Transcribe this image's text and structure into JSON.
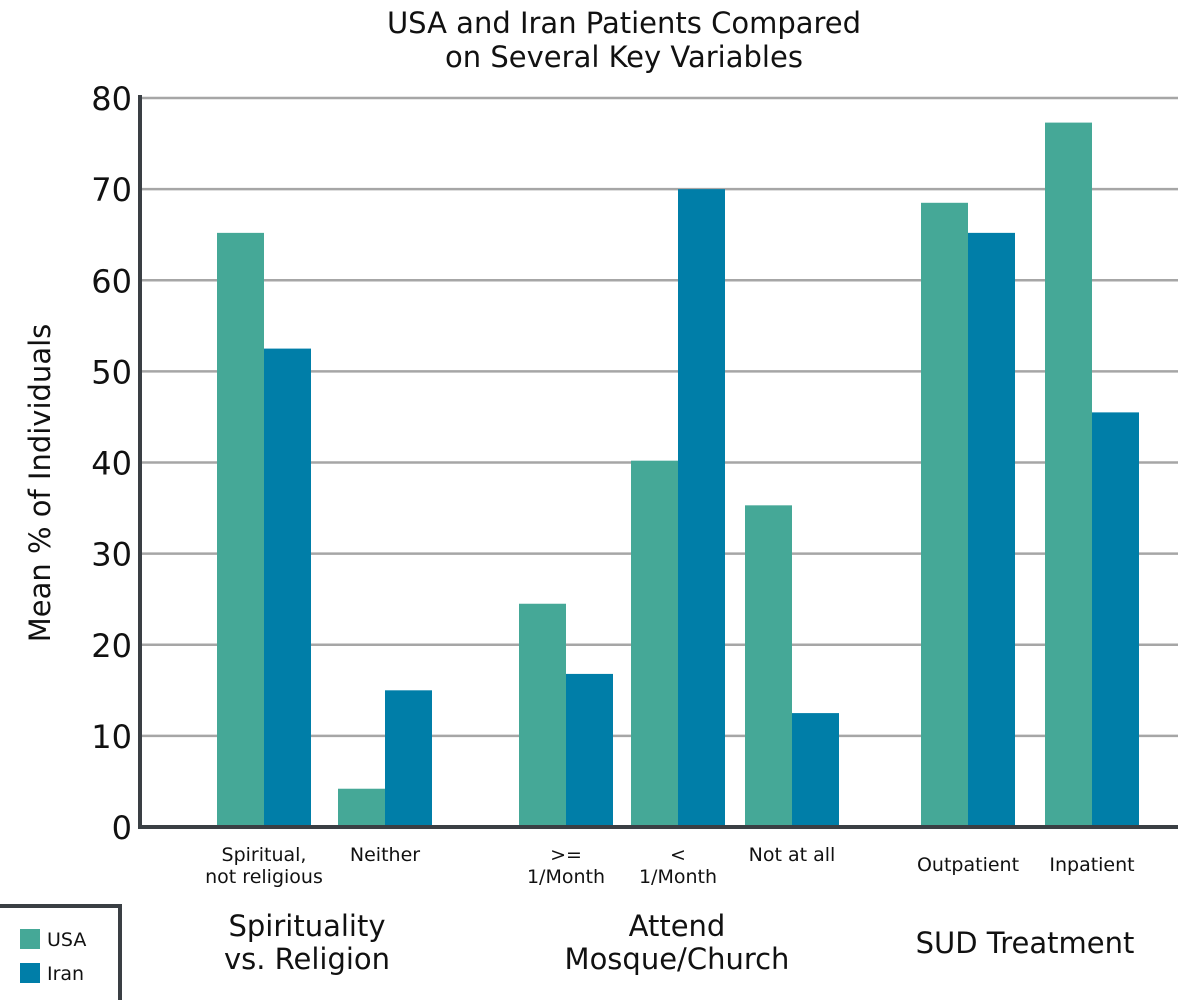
{
  "chart_data": {
    "type": "bar",
    "title": "USA and Iran Patients Compared on Several Key Variables",
    "title_lines": [
      "USA and Iran Patients Compared",
      "on Several Key Variables"
    ],
    "xlabel": "",
    "ylabel": "Mean % of Individuals",
    "ylim": [
      0,
      80
    ],
    "yticks": [
      0,
      10,
      20,
      30,
      40,
      50,
      60,
      70,
      80
    ],
    "grid": true,
    "categories": [
      [
        "Spiritual,",
        "not religious"
      ],
      [
        "Neither"
      ],
      [
        ">=",
        "1/Month"
      ],
      [
        "<",
        "1/Month"
      ],
      [
        "Not at all"
      ],
      [
        "Outpatient"
      ],
      [
        "Inpatient"
      ]
    ],
    "groups": [
      {
        "label_lines": [
          "Spirituality",
          "vs. Religion"
        ],
        "categories": [
          0,
          1
        ]
      },
      {
        "label_lines": [
          "Attend",
          "Mosque/Church"
        ],
        "categories": [
          2,
          3,
          4
        ]
      },
      {
        "label_lines": [
          "SUD Treatment"
        ],
        "categories": [
          5,
          6
        ]
      }
    ],
    "series": [
      {
        "name": "USA",
        "color": "#45a897",
        "values": [
          65.2,
          4.2,
          24.5,
          40.2,
          35.3,
          68.5,
          77.3
        ]
      },
      {
        "name": "Iran",
        "color": "#007ea8",
        "values": [
          52.5,
          15.0,
          16.8,
          70.0,
          12.5,
          65.2,
          45.5
        ]
      }
    ],
    "legend": {
      "position": "bottom-left",
      "items": [
        "USA",
        "Iran"
      ]
    }
  }
}
